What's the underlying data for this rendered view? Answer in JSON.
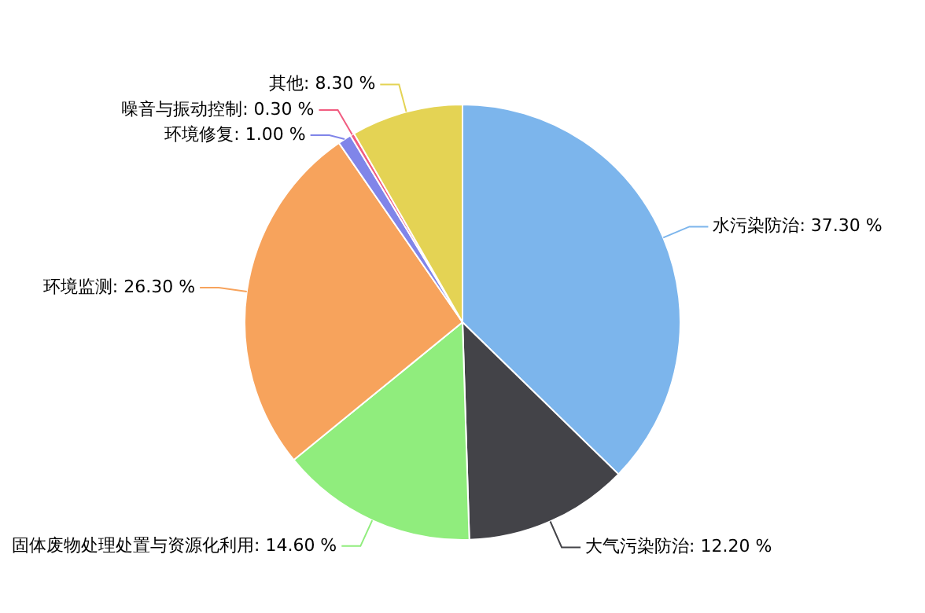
{
  "chart_data": {
    "type": "pie",
    "categories": [
      "水污染防治",
      "大气污染防治",
      "固体废物处理处置与资源化利用",
      "环境监测",
      "环境修复",
      "噪音与振动控制",
      "其他"
    ],
    "values": [
      37.3,
      12.2,
      14.6,
      26.3,
      1.0,
      0.3,
      8.3
    ],
    "value_labels": [
      "37.30 %",
      "12.20 %",
      "14.60 %",
      "26.30 %",
      "1.00 %",
      "0.30 %",
      "8.30 %"
    ],
    "colors": [
      "#7cb5ec",
      "#434348",
      "#90ed7d",
      "#f7a35c",
      "#8085e9",
      "#f15c80",
      "#e4d354"
    ],
    "legend": false
  }
}
